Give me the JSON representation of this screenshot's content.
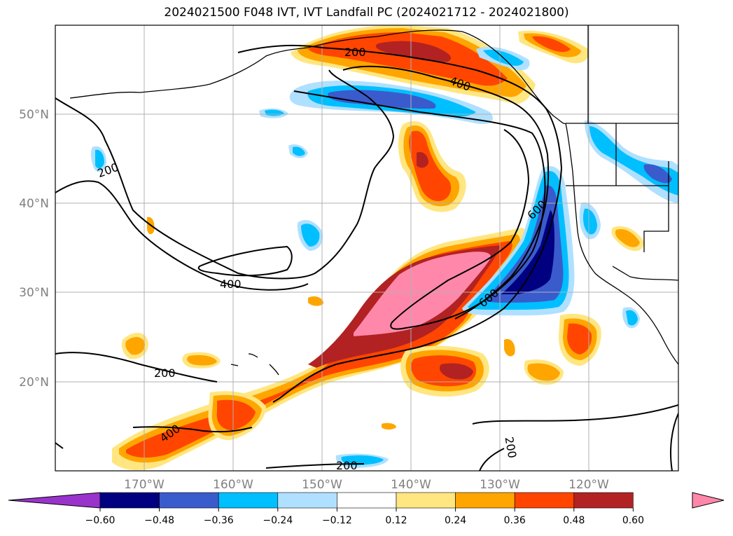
{
  "title": "2024021500 F048 IVT, IVT Landfall PC (2024021712 - 2024021800)",
  "lon_labels": [
    "170°W",
    "160°W",
    "150°W",
    "140°W",
    "130°W",
    "120°W"
  ],
  "lat_labels": [
    "50°N",
    "40°N",
    "30°N",
    "20°N"
  ],
  "colorbar": {
    "ticks": [
      "−0.60",
      "−0.48",
      "−0.36",
      "−0.24",
      "−0.12",
      "0.12",
      "0.24",
      "0.36",
      "0.48",
      "0.60"
    ],
    "colors": [
      "#9933cc",
      "#000080",
      "#3a5bcc",
      "#00bfff",
      "#b0e0ff",
      "#ffffff",
      "#ffe680",
      "#ffa500",
      "#ff4500",
      "#b22222",
      "#ff88aa"
    ]
  },
  "contour_labels": {
    "c200_north": "200",
    "c400_north": "400",
    "c200_west": "200",
    "c400_center": "400",
    "c600_a": "600",
    "c600_b": "600",
    "c200_south": "200",
    "c400_south": "400",
    "c200_east": "200",
    "c200_bottom": "200"
  }
}
